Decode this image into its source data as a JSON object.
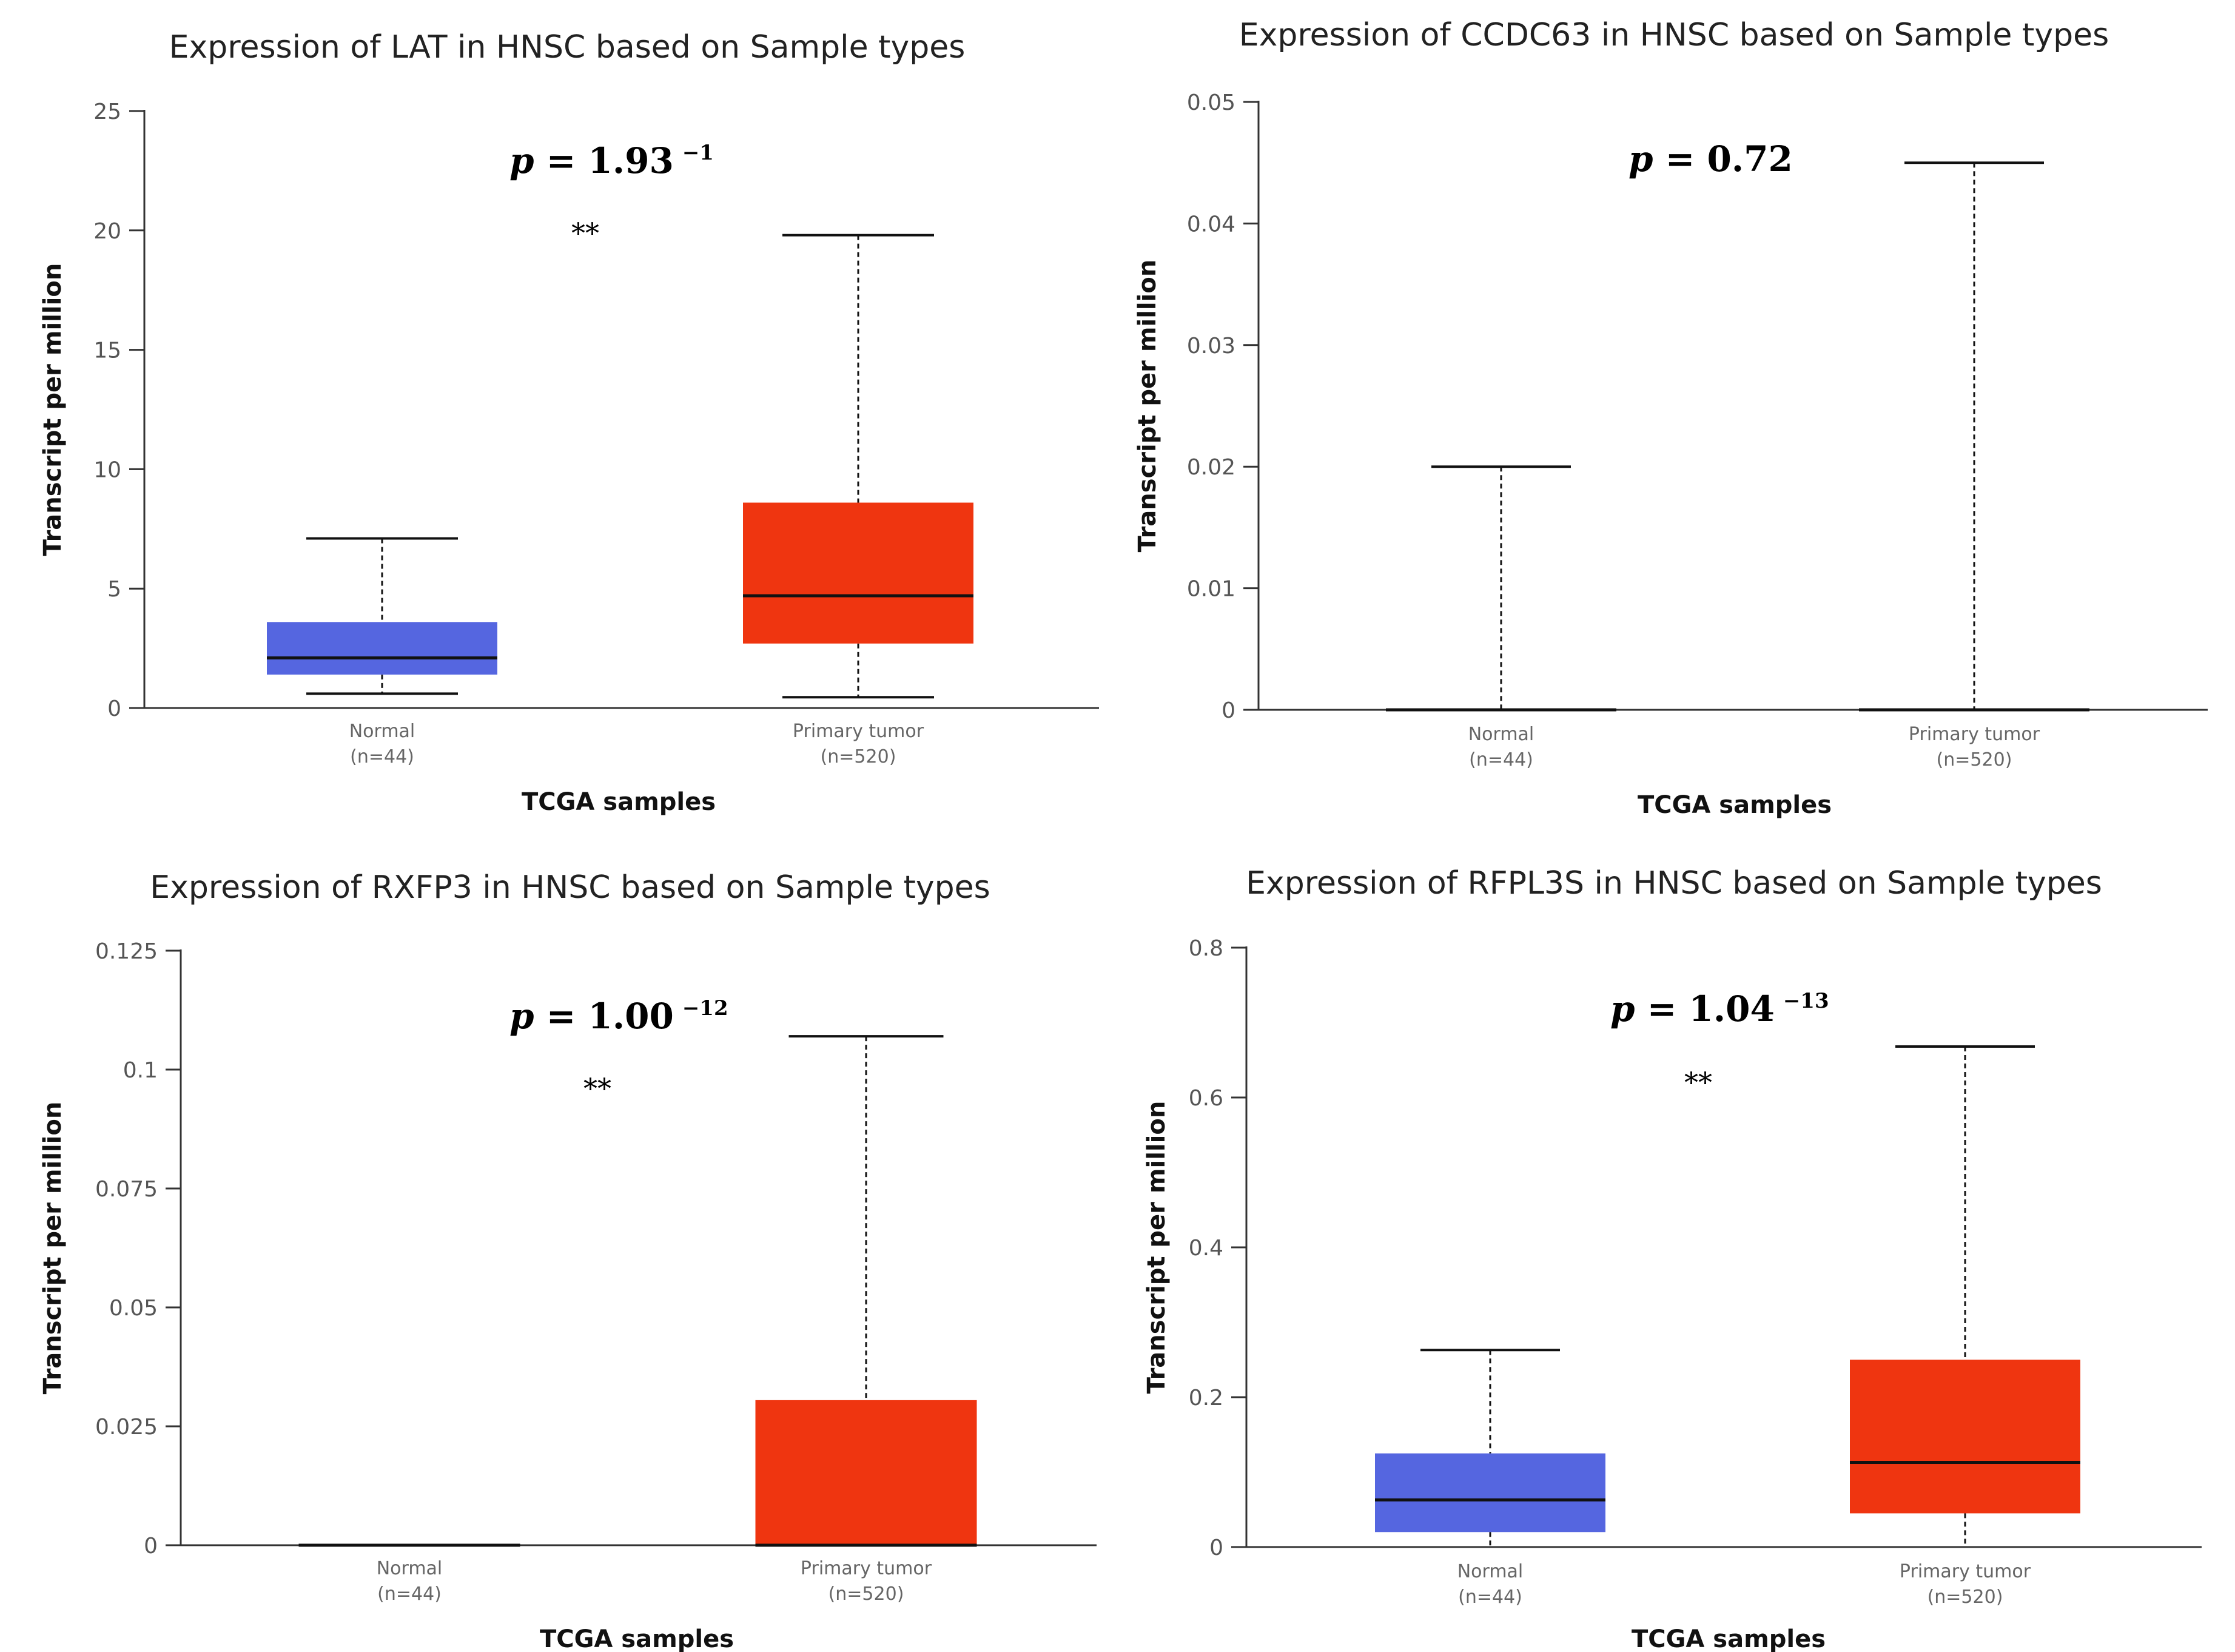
{
  "chart_data": [
    {
      "type": "boxplot",
      "title": "Expression of LAT in HNSC based on Sample types",
      "ylabel": "Transcript per million",
      "xlabel": "TCGA samples",
      "ylim": [
        0,
        25
      ],
      "yticks": [
        "0",
        "5",
        "10",
        "15",
        "20",
        "25"
      ],
      "ytick_values": [
        0,
        5,
        10,
        15,
        20,
        25
      ],
      "p_label": "p",
      "p_value": " = 1.93",
      "p_exponent": "−1",
      "significance": "**",
      "groups": [
        {
          "name": "Normal",
          "n": "(n=44)",
          "color": "#5566e0",
          "min": 0.6,
          "q1": 1.4,
          "median": 2.1,
          "q3": 3.6,
          "max": 7.1
        },
        {
          "name": "Primary tumor",
          "n": "(n=520)",
          "color": "#ef3510",
          "min": 0.45,
          "q1": 2.7,
          "median": 4.7,
          "q3": 8.6,
          "max": 19.8
        }
      ]
    },
    {
      "type": "boxplot",
      "title": "Expression of CCDC63 in HNSC based on Sample types",
      "ylabel": "Transcript per million",
      "xlabel": "TCGA samples",
      "ylim": [
        0,
        0.05
      ],
      "yticks": [
        "0",
        "0.01",
        "0.02",
        "0.03",
        "0.04",
        "0.05"
      ],
      "ytick_values": [
        0,
        0.01,
        0.02,
        0.03,
        0.04,
        0.05
      ],
      "p_label": "p",
      "p_value": " = 0.72",
      "p_exponent": "",
      "significance": "",
      "groups": [
        {
          "name": "Normal",
          "n": "(n=44)",
          "color": "#5566e0",
          "min": 0,
          "q1": 0,
          "median": 0,
          "q3": 0,
          "max": 0.02
        },
        {
          "name": "Primary tumor",
          "n": "(n=520)",
          "color": "#ef3510",
          "min": 0,
          "q1": 0,
          "median": 0,
          "q3": 0,
          "max": 0.045
        }
      ]
    },
    {
      "type": "boxplot",
      "title": "Expression of RXFP3 in HNSC based on Sample types",
      "ylabel": "Transcript per million",
      "xlabel": "TCGA samples",
      "ylim": [
        0,
        0.125
      ],
      "yticks": [
        "0",
        "0.025",
        "0.05",
        "0.075",
        "0.1",
        "0.125"
      ],
      "ytick_values": [
        0,
        0.025,
        0.05,
        0.075,
        0.1,
        0.125
      ],
      "p_label": "p",
      "p_value": " = 1.00",
      "p_exponent": "−12",
      "significance": "**",
      "groups": [
        {
          "name": "Normal",
          "n": "(n=44)",
          "color": "#5566e0",
          "min": 0,
          "q1": 0,
          "median": 0,
          "q3": 0,
          "max": 0
        },
        {
          "name": "Primary tumor",
          "n": "(n=520)",
          "color": "#ef3510",
          "min": 0,
          "q1": 0,
          "median": 0,
          "q3": 0.0305,
          "max": 0.107
        }
      ]
    },
    {
      "type": "boxplot",
      "title": "Expression of RFPL3S in HNSC based on Sample types",
      "ylabel": "Transcript per million",
      "xlabel": "TCGA samples",
      "ylim": [
        0,
        0.8
      ],
      "yticks": [
        "0",
        "0.2",
        "0.4",
        "0.6",
        "0.8"
      ],
      "ytick_values": [
        0,
        0.2,
        0.4,
        0.6,
        0.8
      ],
      "p_label": "p",
      "p_value": " = 1.04",
      "p_exponent": "−13",
      "significance": "**",
      "groups": [
        {
          "name": "Normal",
          "n": "(n=44)",
          "color": "#5566e0",
          "min": 0,
          "q1": 0.02,
          "median": 0.063,
          "q3": 0.125,
          "max": 0.263
        },
        {
          "name": "Primary tumor",
          "n": "(n=520)",
          "color": "#ef3510",
          "min": 0,
          "q1": 0.045,
          "median": 0.113,
          "q3": 0.25,
          "max": 0.668
        }
      ]
    }
  ]
}
